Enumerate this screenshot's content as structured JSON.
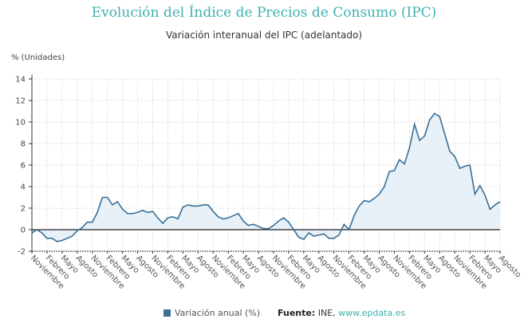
{
  "chart_data": {
    "type": "area",
    "title": "Evolución del Índice de Precios de Consumo (IPC)",
    "subtitle": "Variación interanual del IPC (adelantado)",
    "ylabel": "% (Unidades)",
    "ylim": [
      -2,
      14
    ],
    "yticks": [
      -2,
      0,
      2,
      4,
      6,
      8,
      10,
      12,
      14
    ],
    "grid": true,
    "legend_placement": "bottom",
    "x_start": "2015-11",
    "x_end": "2023-08",
    "xtick_labels": [
      "Noviembre",
      "Febrero",
      "Mayo",
      "Agosto",
      "Noviembre",
      "Febrero",
      "Mayo",
      "Agosto",
      "Noviembre",
      "Febrero",
      "Mayo",
      "Agosto",
      "Noviembre",
      "Febrero",
      "Mayo",
      "Agosto",
      "Noviembre",
      "Febrero",
      "Mayo",
      "Agosto",
      "Noviembre",
      "Febrero",
      "Mayo",
      "Agosto",
      "Noviembre",
      "Febrero",
      "Mayo",
      "Agosto",
      "Noviembre",
      "Febrero",
      "Mayo",
      "Agosto"
    ],
    "series": [
      {
        "name": "Variación anual (%)",
        "color": "#3a6f96",
        "fill": "#e6eff7",
        "values": [
          -0.3,
          0.0,
          -0.3,
          -0.8,
          -0.8,
          -1.1,
          -1.0,
          -0.8,
          -0.6,
          -0.1,
          0.2,
          0.7,
          0.7,
          1.6,
          3.0,
          3.0,
          2.3,
          2.6,
          1.9,
          1.5,
          1.5,
          1.6,
          1.8,
          1.6,
          1.7,
          1.1,
          0.6,
          1.1,
          1.2,
          1.0,
          2.1,
          2.3,
          2.2,
          2.2,
          2.3,
          2.3,
          1.7,
          1.2,
          1.0,
          1.1,
          1.3,
          1.5,
          0.8,
          0.4,
          0.5,
          0.3,
          0.1,
          0.1,
          0.4,
          0.8,
          1.1,
          0.7,
          0.0,
          -0.7,
          -0.9,
          -0.3,
          -0.6,
          -0.5,
          -0.4,
          -0.8,
          -0.8,
          -0.5,
          0.5,
          0.0,
          1.3,
          2.2,
          2.7,
          2.6,
          2.9,
          3.3,
          4.0,
          5.4,
          5.5,
          6.5,
          6.1,
          7.6,
          9.8,
          8.3,
          8.7,
          10.2,
          10.8,
          10.5,
          8.9,
          7.3,
          6.8,
          5.7,
          5.9,
          6.0,
          3.3,
          4.1,
          3.2,
          1.9,
          2.3,
          2.6
        ]
      }
    ],
    "source_label": "Fuente:",
    "source_text": "INE,",
    "source_link": "www.epdata.es"
  }
}
